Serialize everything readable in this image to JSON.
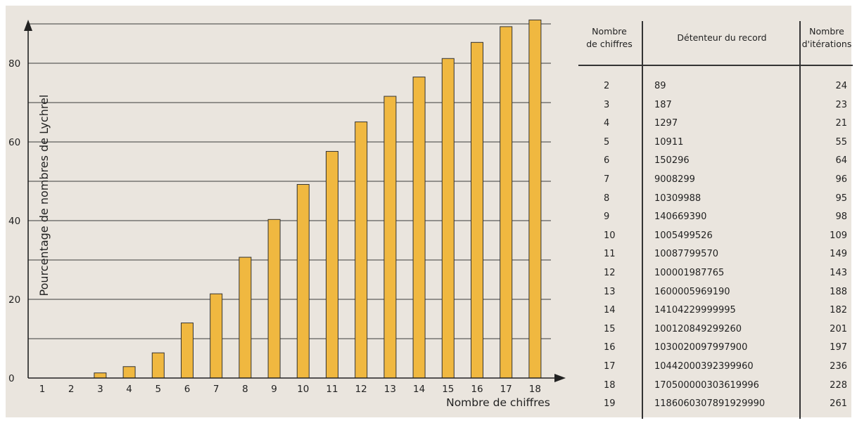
{
  "chart_data": {
    "type": "bar",
    "title": "",
    "xlabel": "Nombre de chiffres",
    "ylabel": "Pourcentage de nombres de Lychrel",
    "categories": [
      "1",
      "2",
      "3",
      "4",
      "5",
      "6",
      "7",
      "8",
      "9",
      "10",
      "11",
      "12",
      "13",
      "14",
      "15",
      "16",
      "17",
      "18"
    ],
    "values": [
      0,
      0,
      1.3,
      2.9,
      6.4,
      14.0,
      21.4,
      30.7,
      40.3,
      49.2,
      57.6,
      65.1,
      71.6,
      76.5,
      81.2,
      85.3,
      89.3,
      91.0
    ],
    "yticks": [
      0,
      20,
      40,
      60,
      80
    ],
    "ylim": [
      0,
      92
    ],
    "bar_color": "#f0b840",
    "grid": true,
    "legend": "none"
  },
  "table": {
    "headers": {
      "digits_line1": "Nombre",
      "digits_line2": "de chiffres",
      "holder": "Détenteur du record",
      "iter_line1": "Nombre",
      "iter_line2": "d'itérations"
    },
    "rows": [
      {
        "digits": "2",
        "holder": "89",
        "iterations": "24"
      },
      {
        "digits": "3",
        "holder": "187",
        "iterations": "23"
      },
      {
        "digits": "4",
        "holder": "1297",
        "iterations": "21"
      },
      {
        "digits": "5",
        "holder": "10911",
        "iterations": "55"
      },
      {
        "digits": "6",
        "holder": "150296",
        "iterations": "64"
      },
      {
        "digits": "7",
        "holder": "9008299",
        "iterations": "96"
      },
      {
        "digits": "8",
        "holder": "10309988",
        "iterations": "95"
      },
      {
        "digits": "9",
        "holder": "140669390",
        "iterations": "98"
      },
      {
        "digits": "10",
        "holder": "1005499526",
        "iterations": "109"
      },
      {
        "digits": "11",
        "holder": "10087799570",
        "iterations": "149"
      },
      {
        "digits": "12",
        "holder": "100001987765",
        "iterations": "143"
      },
      {
        "digits": "13",
        "holder": "1600005969190",
        "iterations": "188"
      },
      {
        "digits": "14",
        "holder": "14104229999995",
        "iterations": "182"
      },
      {
        "digits": "15",
        "holder": "100120849299260",
        "iterations": "201"
      },
      {
        "digits": "16",
        "holder": "1030020097997900",
        "iterations": "197"
      },
      {
        "digits": "17",
        "holder": "10442000392399960",
        "iterations": "236"
      },
      {
        "digits": "18",
        "holder": "170500000303619996",
        "iterations": "228"
      },
      {
        "digits": "19",
        "holder": "1186060307891929990",
        "iterations": "261"
      }
    ]
  }
}
